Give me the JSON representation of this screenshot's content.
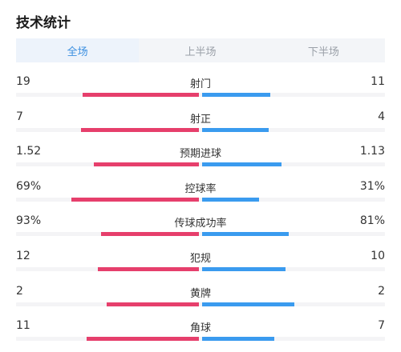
{
  "title": "技术统计",
  "tabs": [
    "全场",
    "上半场",
    "下半场"
  ],
  "active_tab": 0,
  "colors": {
    "home": "#e63f6c",
    "away": "#3a9bef",
    "tab_active": "#3b8fe0"
  },
  "stats": [
    {
      "label": "射门",
      "home": "19",
      "away": "11",
      "home_share": 0.63,
      "away_share": 0.37
    },
    {
      "label": "射正",
      "home": "7",
      "away": "4",
      "home_share": 0.64,
      "away_share": 0.36
    },
    {
      "label": "预期进球",
      "home": "1.52",
      "away": "1.13",
      "home_share": 0.57,
      "away_share": 0.43
    },
    {
      "label": "控球率",
      "home": "69%",
      "away": "31%",
      "home_share": 0.69,
      "away_share": 0.31
    },
    {
      "label": "传球成功率",
      "home": "93%",
      "away": "81%",
      "home_share": 0.53,
      "away_share": 0.47
    },
    {
      "label": "犯规",
      "home": "12",
      "away": "10",
      "home_share": 0.55,
      "away_share": 0.45
    },
    {
      "label": "黄牌",
      "home": "2",
      "away": "2",
      "home_share": 0.5,
      "away_share": 0.5
    },
    {
      "label": "角球",
      "home": "11",
      "away": "7",
      "home_share": 0.61,
      "away_share": 0.39
    }
  ]
}
